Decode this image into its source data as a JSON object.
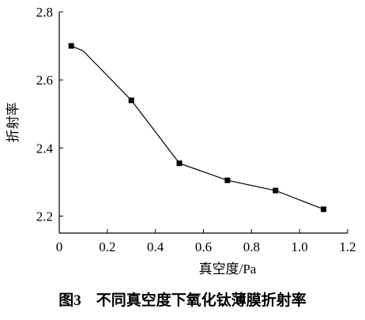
{
  "chart_data": {
    "type": "line",
    "title": "图3　不同真空度下氧化钛薄膜折射率",
    "xlabel": "真空度/Pa",
    "ylabel": "折射率",
    "xlim": [
      0,
      1.2
    ],
    "ylim": [
      2.15,
      2.8
    ],
    "x_ticks": [
      0,
      0.2,
      0.4,
      0.6,
      0.8,
      1.0,
      1.2
    ],
    "x_tick_labels": [
      "0",
      "0.2",
      "0.4",
      "0.6",
      "0.8",
      "1.0",
      "1.2"
    ],
    "y_ticks": [
      2.2,
      2.4,
      2.6,
      2.8
    ],
    "y_tick_labels": [
      "2.2",
      "2.4",
      "2.6",
      "2.8"
    ],
    "grid": false,
    "legend": "none",
    "line_color": "#000000",
    "marker": "square",
    "series": [
      {
        "x": [
          0.05,
          0.1,
          0.3,
          0.5,
          0.7,
          0.9,
          1.1
        ],
        "y": [
          2.7,
          2.685,
          2.54,
          2.355,
          2.305,
          2.275,
          2.22
        ],
        "marker_flags": [
          true,
          false,
          true,
          true,
          true,
          true,
          true
        ]
      }
    ]
  }
}
